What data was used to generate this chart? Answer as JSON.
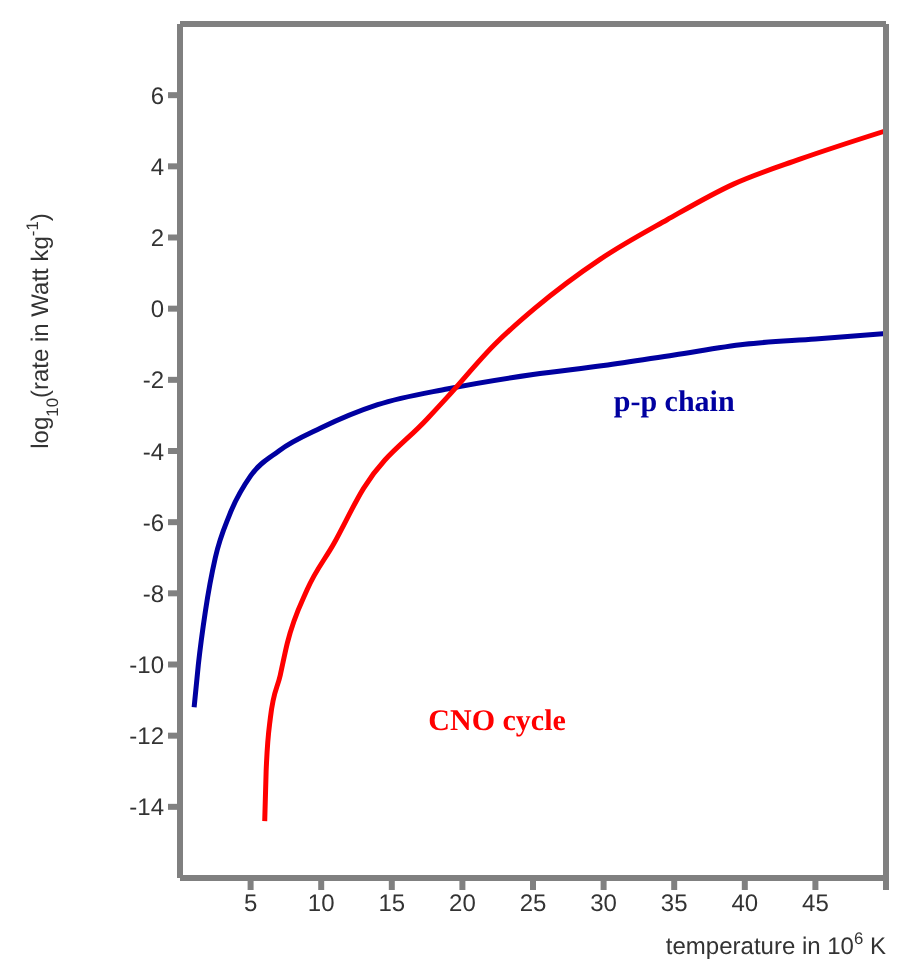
{
  "chart_data": {
    "type": "line",
    "xlabel": "temperature in 10$^{6}$ K",
    "ylabel": "log$_{10}$(rate in Watt kg$^{-1}$)",
    "xlim": [
      0,
      50
    ],
    "ylim": [
      -16,
      8
    ],
    "xticks": [
      5,
      10,
      15,
      20,
      25,
      30,
      35,
      40,
      45,
      {
        "value": 50,
        "label": null
      }
    ],
    "yticks": [
      -14,
      -12,
      -10,
      -8,
      -6,
      -4,
      -2,
      0,
      2,
      4,
      6
    ],
    "marker": "none",
    "line_style": "solid",
    "series": [
      {
        "name": "p-p chain",
        "color": "#0000a0",
        "x": [
          1,
          1.3,
          1.8,
          2.5,
          3.5,
          5,
          7,
          10,
          14,
          19,
          25,
          30,
          35,
          40,
          45,
          50
        ],
        "values": [
          -11.2,
          -10,
          -8.5,
          -7,
          -5.8,
          -4.7,
          -4,
          -3.35,
          -2.7,
          -2.25,
          -1.85,
          -1.6,
          -1.3,
          -1.0,
          -0.85,
          -0.7
        ]
      },
      {
        "name": "CNO cycle",
        "color": "#ff0000",
        "x": [
          6,
          6.1,
          6.4,
          7.1,
          7.6,
          9,
          10.9,
          13,
          17.5,
          18.9,
          22.3,
          25.1,
          29.8,
          34.5,
          39.2,
          43.9,
          50
        ],
        "values": [
          -14.4,
          -13,
          -11.5,
          -10.3,
          -9.4,
          -7.9,
          -6.6,
          -5.05,
          -3.1,
          -2.5,
          -1.0,
          0.0,
          1.4,
          2.5,
          3.5,
          4.2,
          5.0
        ]
      }
    ]
  }
}
